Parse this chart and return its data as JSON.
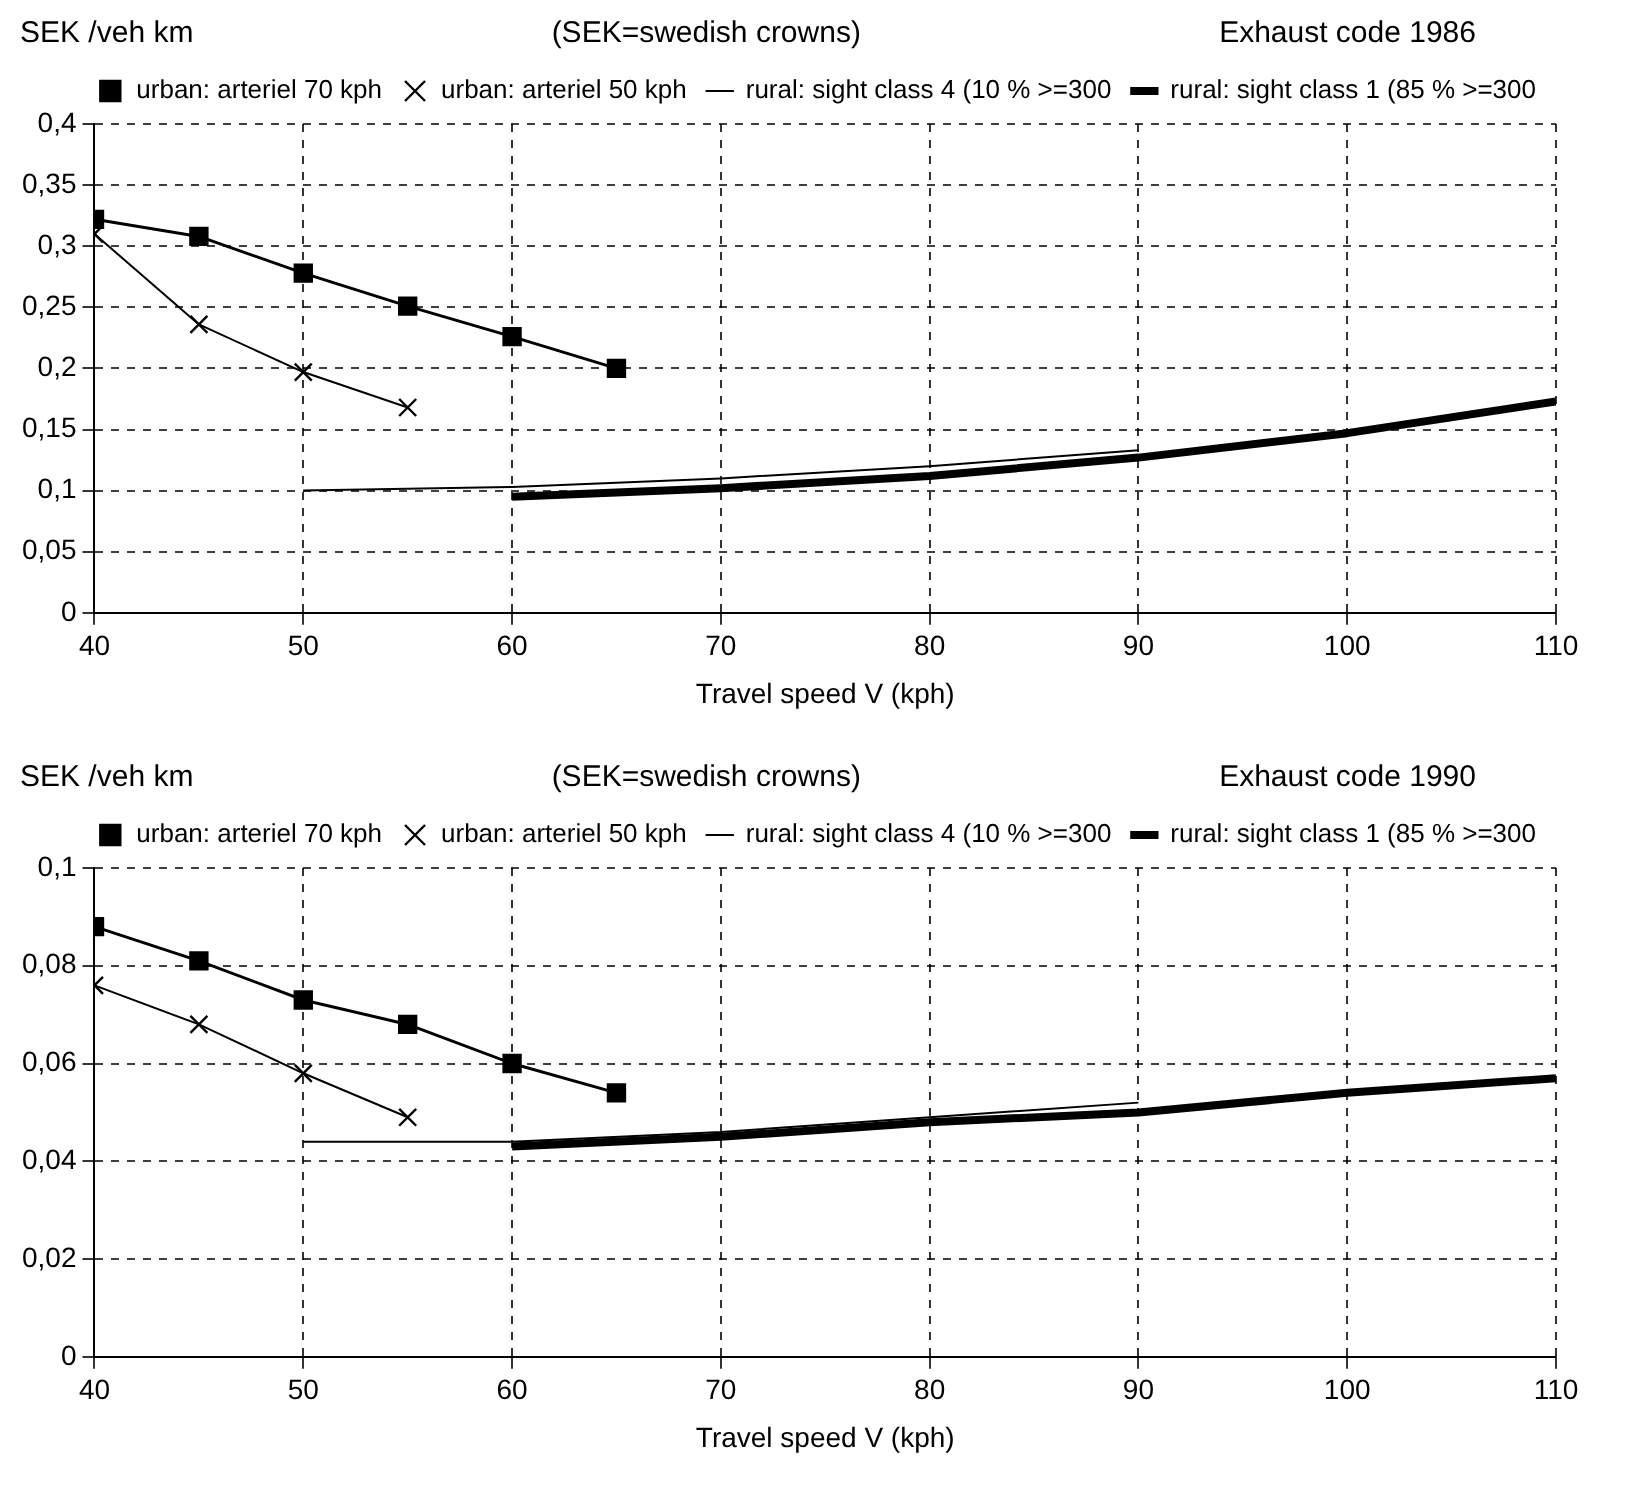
{
  "chart_data": [
    {
      "type": "line",
      "title": "Exhaust code 1986",
      "subtitle": "(SEK=swedish crowns)",
      "ylabel": "SEK /veh km",
      "xlabel": "Travel speed V (kph)",
      "xlim": [
        40,
        110
      ],
      "xticks": [
        40,
        50,
        60,
        70,
        80,
        90,
        100,
        110
      ],
      "ylim": [
        0,
        0.4
      ],
      "yticks": [
        0,
        {
          "value": 0.05,
          "label": "0,05"
        },
        {
          "value": 0.1,
          "label": "0,1"
        },
        {
          "value": 0.15,
          "label": "0,15"
        },
        {
          "value": 0.2,
          "label": "0,2"
        },
        {
          "value": 0.25,
          "label": "0,25"
        },
        {
          "value": 0.3,
          "label": "0,3"
        },
        {
          "value": 0.35,
          "label": "0,35"
        },
        {
          "value": 0.4,
          "label": "0,4"
        }
      ],
      "grid": true,
      "legend": "top right",
      "line_style": "solid",
      "series": [
        {
          "name": "urban: arteriel 70 kph",
          "color": "#000000",
          "marker": "square",
          "x": [
            40,
            45,
            50,
            55,
            60,
            65
          ],
          "values": [
            0.322,
            0.308,
            0.278,
            0.251,
            0.226,
            0.2
          ]
        },
        {
          "name": "urban: arteriel 50 kph",
          "color": "#000000",
          "marker": "cross",
          "x": [
            40,
            45,
            50,
            55
          ],
          "values": [
            0.31,
            0.236,
            0.197,
            0.168
          ]
        },
        {
          "name": "rural: sight class 4 (10 % >=300",
          "color": "#000000",
          "marker": "none",
          "x": [
            50,
            60,
            70,
            80,
            90
          ],
          "values": [
            0.1,
            0.103,
            0.11,
            0.12,
            0.133
          ]
        },
        {
          "name": "rural: sight class 1 (85 % >=300",
          "color": "#000000",
          "marker": "none",
          "x": [
            60,
            70,
            80,
            90,
            100,
            110
          ],
          "values": [
            0.095,
            0.102,
            0.112,
            0.127,
            0.147,
            0.173
          ]
        }
      ]
    },
    {
      "type": "line",
      "title": "Exhaust code 1990",
      "subtitle": "(SEK=swedish crowns)",
      "ylabel": "SEK /veh km",
      "xlabel": "Travel speed V (kph)",
      "xlim": [
        40,
        110
      ],
      "xticks": [
        40,
        50,
        60,
        70,
        80,
        90,
        100,
        110
      ],
      "ylim": [
        0,
        0.1
      ],
      "yticks": [
        0,
        {
          "value": 0.02,
          "label": "0,02"
        },
        {
          "value": 0.04,
          "label": "0,04"
        },
        {
          "value": 0.06,
          "label": "0,06"
        },
        {
          "value": 0.08,
          "label": "0,08"
        },
        {
          "value": 0.1,
          "label": "0,1"
        }
      ],
      "grid": true,
      "legend": "top right",
      "line_style": "solid",
      "series": [
        {
          "name": "urban: arteriel 70 kph",
          "color": "#000000",
          "marker": "square",
          "x": [
            40,
            45,
            50,
            55,
            60,
            65
          ],
          "values": [
            0.088,
            0.081,
            0.073,
            0.068,
            0.06,
            0.054
          ]
        },
        {
          "name": "urban: arteriel 50 kph",
          "color": "#000000",
          "marker": "cross",
          "x": [
            40,
            45,
            50,
            55
          ],
          "values": [
            0.076,
            0.068,
            0.058,
            0.049
          ]
        },
        {
          "name": "rural: sight class 4 (10 % >=300",
          "color": "#000000",
          "marker": "none",
          "x": [
            50,
            60,
            70,
            80,
            90
          ],
          "values": [
            0.044,
            0.044,
            0.046,
            0.049,
            0.052
          ]
        },
        {
          "name": "rural: sight class 1 (85 % >=300",
          "color": "#000000",
          "marker": "none",
          "x": [
            60,
            70,
            80,
            90,
            100,
            110
          ],
          "values": [
            0.043,
            0.045,
            0.048,
            0.05,
            0.054,
            0.057
          ]
        }
      ]
    }
  ]
}
